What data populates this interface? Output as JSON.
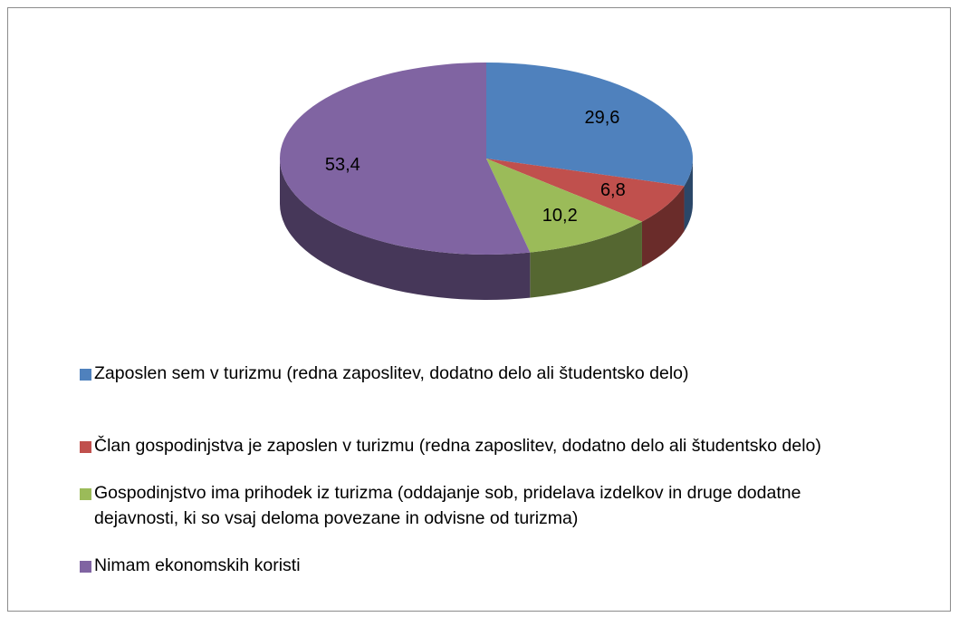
{
  "chart_data": {
    "type": "pie",
    "categories": [
      "Zaposlen sem v turizmu (redna zaposlitev, dodatno delo ali študentsko delo)",
      "Član gospodinjstva je zaposlen v turizmu (redna zaposlitev, dodatno delo ali študentsko delo)",
      "Gospodinjstvo ima prihodek iz turizma (oddajanje sob, pridelava izdelkov in druge dodatne dejavnosti, ki so vsaj deloma povezane in odvisne od turizma)",
      "Nimam ekonomskih koristi"
    ],
    "values": [
      29.6,
      6.8,
      10.2,
      53.4
    ],
    "value_labels": [
      "29,6",
      "6,8",
      "10,2",
      "53,4"
    ],
    "colors": [
      "#4f81bd",
      "#c0504d",
      "#9bbb59",
      "#8064a2"
    ],
    "legend": "bottom"
  }
}
